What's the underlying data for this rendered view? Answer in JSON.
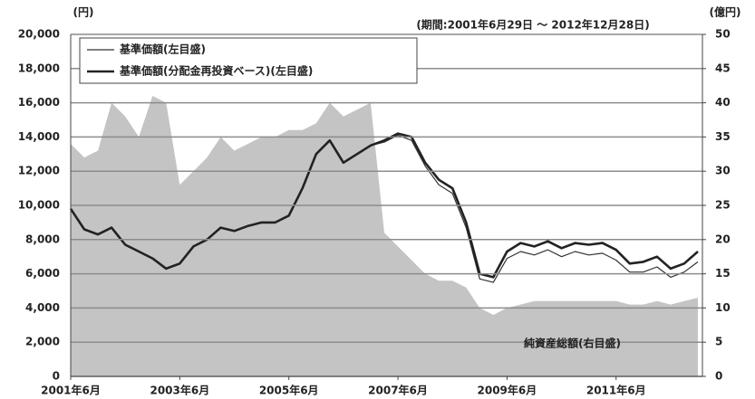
{
  "chart_data": {
    "type": "line",
    "left_unit": "(円)",
    "right_unit": "(億円)",
    "period": "(期間:2001年6月29日 ～ 2012年12月28日)",
    "annotation": "純資産総額(右目盛)",
    "x": [
      "2001-06",
      "2001-09",
      "2001-12",
      "2002-03",
      "2002-06",
      "2002-09",
      "2002-12",
      "2003-03",
      "2003-06",
      "2003-09",
      "2003-12",
      "2004-03",
      "2004-06",
      "2004-09",
      "2004-12",
      "2005-03",
      "2005-06",
      "2005-09",
      "2005-12",
      "2006-03",
      "2006-06",
      "2006-09",
      "2006-12",
      "2007-03",
      "2007-06",
      "2007-09",
      "2007-12",
      "2008-03",
      "2008-06",
      "2008-09",
      "2008-12",
      "2009-03",
      "2009-06",
      "2009-09",
      "2009-12",
      "2010-03",
      "2010-06",
      "2010-09",
      "2010-12",
      "2011-03",
      "2011-06",
      "2011-09",
      "2011-12",
      "2012-03",
      "2012-06",
      "2012-09",
      "2012-12"
    ],
    "xlim": [
      "2001-06",
      "2013-01"
    ],
    "xticks": [
      {
        "value": "2001-06",
        "label": "2001年6月"
      },
      {
        "value": "2003-06",
        "label": "2003年6月"
      },
      {
        "value": "2005-06",
        "label": "2005年6月"
      },
      {
        "value": "2007-06",
        "label": "2007年6月"
      },
      {
        "value": "2009-06",
        "label": "2009年6月"
      },
      {
        "value": "2011-06",
        "label": "2011年6月"
      }
    ],
    "ylim": [
      0,
      20000
    ],
    "yticks": [
      0,
      {
        "value": 2000,
        "label": "2,000"
      },
      {
        "value": 4000,
        "label": "4,000"
      },
      {
        "value": 6000,
        "label": "6,000"
      },
      {
        "value": 8000,
        "label": "8,000"
      },
      {
        "value": 10000,
        "label": "10,000"
      },
      {
        "value": 12000,
        "label": "12,000"
      },
      {
        "value": 14000,
        "label": "14,000"
      },
      {
        "value": 16000,
        "label": "16,000"
      },
      {
        "value": 18000,
        "label": "18,000"
      },
      {
        "value": 20000,
        "label": "20,000"
      }
    ],
    "y2lim": [
      0,
      50
    ],
    "y2ticks": [
      0,
      5,
      10,
      15,
      20,
      25,
      30,
      35,
      40,
      45,
      50
    ],
    "grid": true,
    "series": [
      {
        "name": "純資産総額",
        "type": "area",
        "axis": "y2",
        "color": "#c4c4c4",
        "values": [
          34,
          32,
          33,
          40,
          38,
          35,
          41,
          40,
          28,
          30,
          32,
          35,
          33,
          34,
          35,
          35,
          36,
          36,
          37,
          40,
          38,
          39,
          40,
          21,
          19,
          17,
          15,
          14,
          14,
          13,
          10,
          9,
          10,
          10.5,
          11,
          11,
          11,
          11,
          11,
          11,
          11,
          10.5,
          10.5,
          11,
          10.5,
          11,
          11.5
        ]
      },
      {
        "name": "基準価額(左目盛)",
        "type": "line",
        "color": "#333333",
        "width": 1.2,
        "values": [
          9800,
          8600,
          8300,
          8700,
          7700,
          7300,
          6900,
          6300,
          6600,
          7600,
          8000,
          8700,
          8500,
          8800,
          9000,
          9000,
          9400,
          11000,
          13000,
          13800,
          12500,
          13000,
          13500,
          13700,
          14100,
          13800,
          12300,
          11200,
          10700,
          8700,
          5700,
          5500,
          6900,
          7300,
          7100,
          7400,
          7000,
          7300,
          7100,
          7200,
          6800,
          6100,
          6100,
          6400,
          5800,
          6100,
          6700
        ]
      },
      {
        "name": "基準価額(分配金再投資ベース)(左目盛)",
        "type": "line",
        "color": "#222222",
        "width": 2.6,
        "values": [
          9800,
          8600,
          8300,
          8700,
          7700,
          7300,
          6900,
          6300,
          6600,
          7600,
          8000,
          8700,
          8500,
          8800,
          9000,
          9000,
          9400,
          11000,
          13000,
          13800,
          12500,
          13000,
          13500,
          13800,
          14200,
          14000,
          12500,
          11500,
          11000,
          9000,
          6000,
          5800,
          7300,
          7800,
          7600,
          7900,
          7500,
          7800,
          7700,
          7800,
          7400,
          6600,
          6700,
          7000,
          6300,
          6600,
          7300
        ]
      }
    ]
  }
}
